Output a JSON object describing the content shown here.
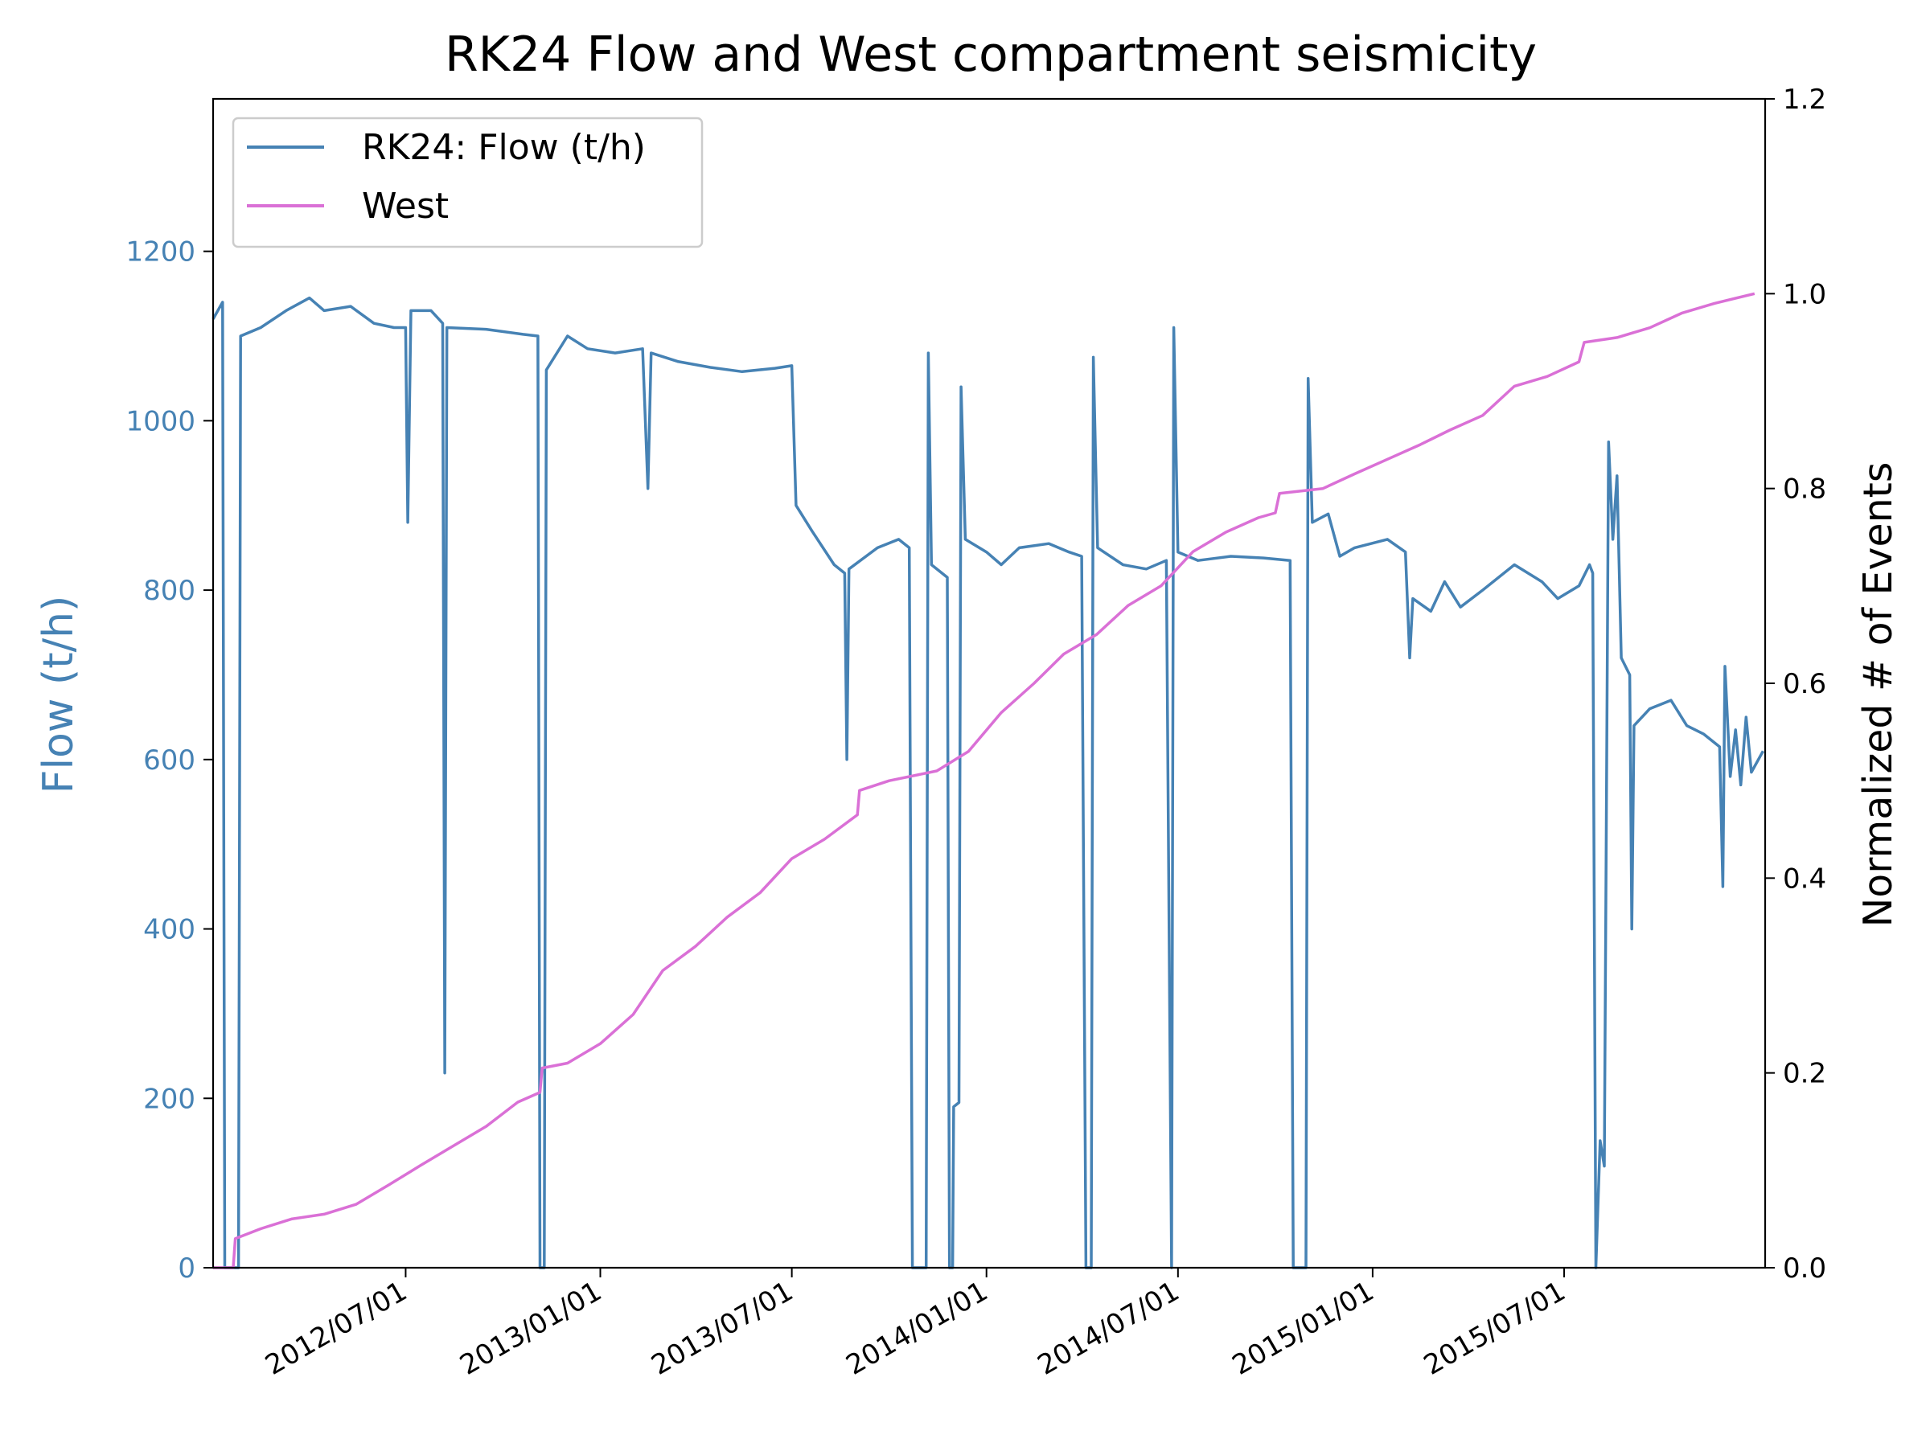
{
  "chart_data": {
    "type": "line",
    "title": "RK24 Flow and West compartment seismicity",
    "ylabel_left": "Flow (t/h)",
    "ylabel_right": "Normalized # of Events",
    "xlabel": "",
    "colors": {
      "flow": "#4682b4",
      "west": "#da70d6",
      "left_ticks": "#4682b4"
    },
    "x_range": [
      "2012-01-01",
      "2016-01-07"
    ],
    "y_left_range": [
      0,
      1380
    ],
    "y_right_range": [
      0,
      1.2
    ],
    "x_ticks": [
      "2012/07/01",
      "2013/01/01",
      "2013/07/01",
      "2014/01/01",
      "2014/07/01",
      "2015/01/01",
      "2015/07/01"
    ],
    "y_left_ticks": [
      "0",
      "200",
      "400",
      "600",
      "800",
      "1000",
      "1200"
    ],
    "y_right_ticks": [
      "0.0",
      "0.2",
      "0.4",
      "0.6",
      "0.8",
      "1.0",
      "1.2"
    ],
    "grid": false,
    "legend_position": "top-left",
    "legend": [
      "RK24: Flow (t/h)",
      "West"
    ],
    "series": [
      {
        "name": "RK24: Flow (t/h)",
        "axis": "left",
        "points": [
          [
            "2012-01-01",
            1120
          ],
          [
            "2012-01-10",
            1140
          ],
          [
            "2012-01-12",
            0
          ],
          [
            "2012-01-25",
            0
          ],
          [
            "2012-01-27",
            1100
          ],
          [
            "2012-02-15",
            1110
          ],
          [
            "2012-03-10",
            1130
          ],
          [
            "2012-04-01",
            1145
          ],
          [
            "2012-04-15",
            1130
          ],
          [
            "2012-05-10",
            1135
          ],
          [
            "2012-06-01",
            1115
          ],
          [
            "2012-06-20",
            1110
          ],
          [
            "2012-07-01",
            1110
          ],
          [
            "2012-07-03",
            880
          ],
          [
            "2012-07-06",
            1130
          ],
          [
            "2012-07-25",
            1130
          ],
          [
            "2012-08-05",
            1115
          ],
          [
            "2012-08-07",
            230
          ],
          [
            "2012-08-09",
            1110
          ],
          [
            "2012-09-15",
            1108
          ],
          [
            "2012-10-20",
            1102
          ],
          [
            "2012-11-03",
            1100
          ],
          [
            "2012-11-05",
            0
          ],
          [
            "2012-11-09",
            0
          ],
          [
            "2012-11-11",
            1060
          ],
          [
            "2012-12-01",
            1100
          ],
          [
            "2012-12-20",
            1085
          ],
          [
            "2013-01-15",
            1080
          ],
          [
            "2013-02-10",
            1085
          ],
          [
            "2013-02-15",
            920
          ],
          [
            "2013-02-18",
            1080
          ],
          [
            "2013-03-15",
            1070
          ],
          [
            "2013-04-15",
            1063
          ],
          [
            "2013-05-15",
            1058
          ],
          [
            "2013-06-15",
            1062
          ],
          [
            "2013-07-01",
            1065
          ],
          [
            "2013-07-05",
            900
          ],
          [
            "2013-07-20",
            870
          ],
          [
            "2013-08-10",
            830
          ],
          [
            "2013-08-20",
            820
          ],
          [
            "2013-08-22",
            600
          ],
          [
            "2013-08-24",
            825
          ],
          [
            "2013-09-20",
            850
          ],
          [
            "2013-10-10",
            860
          ],
          [
            "2013-10-20",
            850
          ],
          [
            "2013-10-23",
            0
          ],
          [
            "2013-11-05",
            0
          ],
          [
            "2013-11-07",
            1080
          ],
          [
            "2013-11-10",
            830
          ],
          [
            "2013-11-25",
            815
          ],
          [
            "2013-11-27",
            0
          ],
          [
            "2013-11-30",
            0
          ],
          [
            "2013-12-01",
            190
          ],
          [
            "2013-12-06",
            195
          ],
          [
            "2013-12-08",
            1040
          ],
          [
            "2013-12-12",
            860
          ],
          [
            "2014-01-01",
            845
          ],
          [
            "2014-01-15",
            830
          ],
          [
            "2014-02-01",
            850
          ],
          [
            "2014-03-01",
            855
          ],
          [
            "2014-03-20",
            845
          ],
          [
            "2014-04-01",
            840
          ],
          [
            "2014-04-05",
            0
          ],
          [
            "2014-04-10",
            0
          ],
          [
            "2014-04-12",
            1075
          ],
          [
            "2014-04-16",
            850
          ],
          [
            "2014-05-10",
            830
          ],
          [
            "2014-06-01",
            825
          ],
          [
            "2014-06-20",
            835
          ],
          [
            "2014-06-25",
            0
          ],
          [
            "2014-06-27",
            1110
          ],
          [
            "2014-07-01",
            845
          ],
          [
            "2014-07-20",
            835
          ],
          [
            "2014-08-20",
            840
          ],
          [
            "2014-09-20",
            838
          ],
          [
            "2014-10-15",
            835
          ],
          [
            "2014-10-18",
            0
          ],
          [
            "2014-10-30",
            0
          ],
          [
            "2014-11-01",
            1050
          ],
          [
            "2014-11-05",
            880
          ],
          [
            "2014-11-20",
            890
          ],
          [
            "2014-12-01",
            840
          ],
          [
            "2014-12-15",
            850
          ],
          [
            "2015-01-15",
            860
          ],
          [
            "2015-02-01",
            845
          ],
          [
            "2015-02-05",
            720
          ],
          [
            "2015-02-08",
            790
          ],
          [
            "2015-02-25",
            775
          ],
          [
            "2015-03-10",
            810
          ],
          [
            "2015-03-25",
            780
          ],
          [
            "2015-04-15",
            800
          ],
          [
            "2015-05-15",
            830
          ],
          [
            "2015-06-10",
            810
          ],
          [
            "2015-06-25",
            790
          ],
          [
            "2015-07-15",
            805
          ],
          [
            "2015-07-25",
            830
          ],
          [
            "2015-07-28",
            820
          ],
          [
            "2015-07-31",
            0
          ],
          [
            "2015-08-04",
            150
          ],
          [
            "2015-08-08",
            120
          ],
          [
            "2015-08-12",
            975
          ],
          [
            "2015-08-16",
            860
          ],
          [
            "2015-08-20",
            935
          ],
          [
            "2015-08-24",
            720
          ],
          [
            "2015-09-01",
            700
          ],
          [
            "2015-09-03",
            400
          ],
          [
            "2015-09-05",
            640
          ],
          [
            "2015-09-20",
            660
          ],
          [
            "2015-10-10",
            670
          ],
          [
            "2015-10-25",
            640
          ],
          [
            "2015-11-10",
            630
          ],
          [
            "2015-11-25",
            615
          ],
          [
            "2015-11-28",
            450
          ],
          [
            "2015-11-30",
            710
          ],
          [
            "2015-12-05",
            580
          ],
          [
            "2015-12-10",
            635
          ],
          [
            "2015-12-15",
            570
          ],
          [
            "2015-12-20",
            650
          ],
          [
            "2015-12-25",
            585
          ],
          [
            "2016-01-05",
            610
          ]
        ]
      },
      {
        "name": "West",
        "axis": "right",
        "points": [
          [
            "2012-01-01",
            0.0
          ],
          [
            "2012-01-20",
            0.0
          ],
          [
            "2012-01-22",
            0.03
          ],
          [
            "2012-02-15",
            0.04
          ],
          [
            "2012-03-15",
            0.05
          ],
          [
            "2012-04-15",
            0.055
          ],
          [
            "2012-05-15",
            0.065
          ],
          [
            "2012-06-15",
            0.085
          ],
          [
            "2012-07-15",
            0.105
          ],
          [
            "2012-08-15",
            0.125
          ],
          [
            "2012-09-15",
            0.145
          ],
          [
            "2012-10-15",
            0.17
          ],
          [
            "2012-11-05",
            0.18
          ],
          [
            "2012-11-07",
            0.205
          ],
          [
            "2012-12-01",
            0.21
          ],
          [
            "2013-01-01",
            0.23
          ],
          [
            "2013-02-01",
            0.26
          ],
          [
            "2013-03-01",
            0.305
          ],
          [
            "2013-04-01",
            0.33
          ],
          [
            "2013-05-01",
            0.36
          ],
          [
            "2013-06-01",
            0.385
          ],
          [
            "2013-07-01",
            0.42
          ],
          [
            "2013-08-01",
            0.44
          ],
          [
            "2013-09-01",
            0.465
          ],
          [
            "2013-09-03",
            0.49
          ],
          [
            "2013-10-01",
            0.5
          ],
          [
            "2013-11-15",
            0.51
          ],
          [
            "2013-12-15",
            0.53
          ],
          [
            "2014-01-15",
            0.57
          ],
          [
            "2014-02-15",
            0.6
          ],
          [
            "2014-03-15",
            0.63
          ],
          [
            "2014-04-15",
            0.65
          ],
          [
            "2014-05-15",
            0.68
          ],
          [
            "2014-06-15",
            0.7
          ],
          [
            "2014-07-15",
            0.735
          ],
          [
            "2014-08-15",
            0.755
          ],
          [
            "2014-09-15",
            0.77
          ],
          [
            "2014-10-01",
            0.775
          ],
          [
            "2014-10-05",
            0.795
          ],
          [
            "2014-11-15",
            0.8
          ],
          [
            "2014-12-15",
            0.815
          ],
          [
            "2015-01-15",
            0.83
          ],
          [
            "2015-02-15",
            0.845
          ],
          [
            "2015-03-15",
            0.86
          ],
          [
            "2015-04-15",
            0.875
          ],
          [
            "2015-05-15",
            0.905
          ],
          [
            "2015-06-15",
            0.915
          ],
          [
            "2015-07-15",
            0.93
          ],
          [
            "2015-07-20",
            0.95
          ],
          [
            "2015-08-20",
            0.955
          ],
          [
            "2015-09-20",
            0.965
          ],
          [
            "2015-10-20",
            0.98
          ],
          [
            "2015-11-20",
            0.99
          ],
          [
            "2015-12-28",
            1.0
          ]
        ]
      }
    ]
  }
}
